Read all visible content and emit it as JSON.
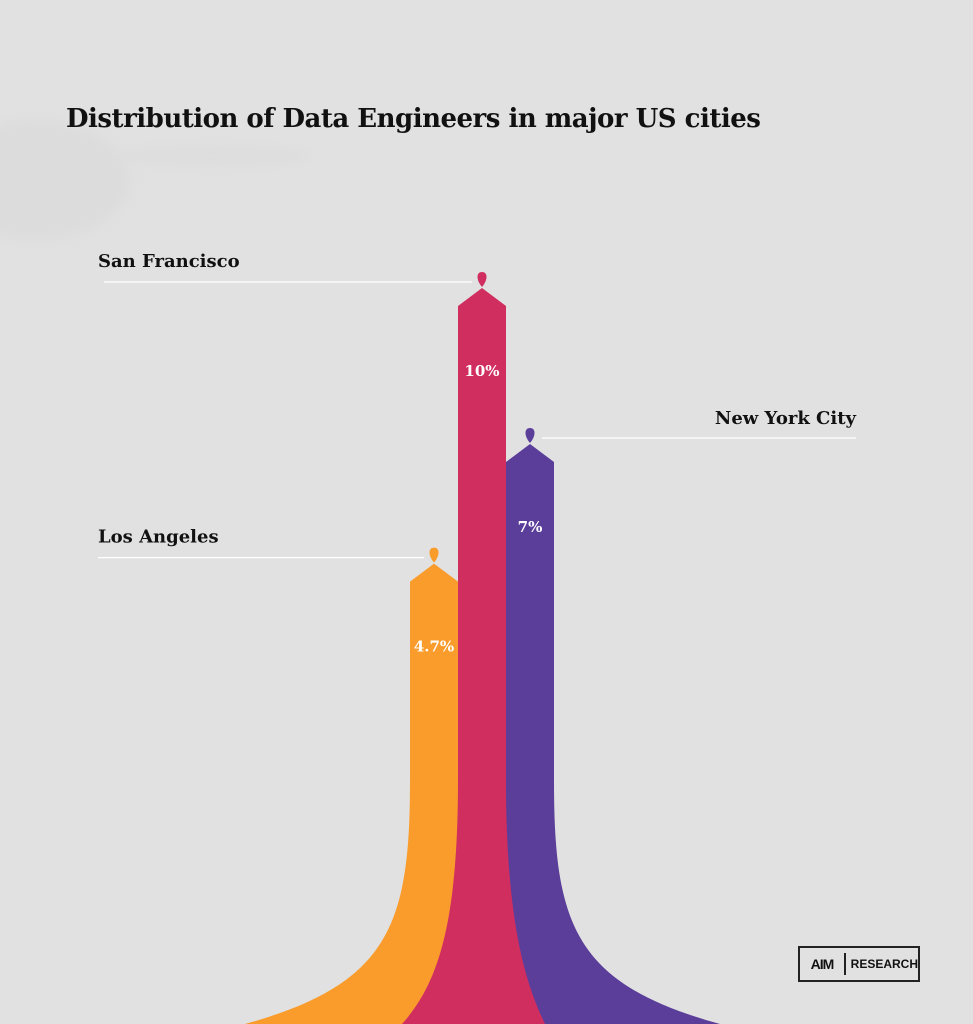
{
  "title": "Distribution of Data Engineers in major US cities",
  "chart_data": {
    "type": "bar",
    "title": "Distribution of Data Engineers in major US cities",
    "categories": [
      "Los Angeles",
      "San Francisco",
      "New York City"
    ],
    "values": [
      4.7,
      10,
      7
    ],
    "value_labels": [
      "4.7%",
      "10%",
      "7%"
    ],
    "unit": "%",
    "colors": [
      "#f99c2c",
      "#d12e60",
      "#5a3e9a"
    ],
    "grid": false,
    "legend": "none"
  },
  "logo": {
    "mark": "AIM",
    "text": "RESEARCH"
  }
}
